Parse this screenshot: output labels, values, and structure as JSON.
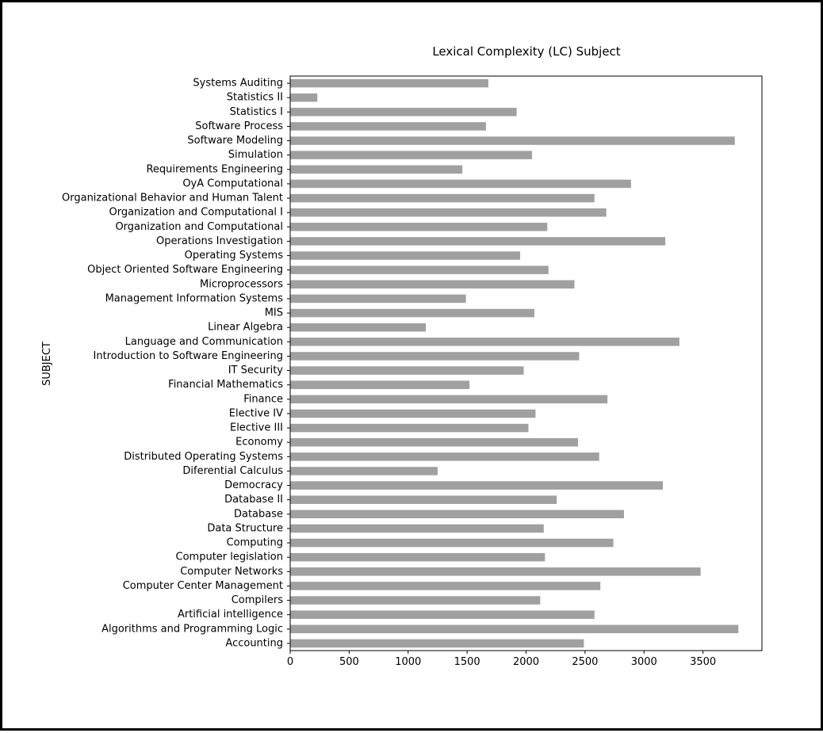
{
  "chart_data": {
    "type": "bar",
    "orientation": "horizontal",
    "title": "Lexical Complexity (LC) Subject",
    "xlabel": "",
    "ylabel": "SUBJECT",
    "xlim": [
      0,
      4000
    ],
    "xticks": [
      0,
      500,
      1000,
      1500,
      2000,
      2500,
      3000,
      3500
    ],
    "grid": false,
    "legend": "none",
    "bar_color": "#a0a0a0",
    "categories": [
      "Accounting",
      "Algorithms and Programming Logic",
      "Artificial intelligence",
      "Compilers",
      "Computer Center Management",
      "Computer Networks",
      "Computer legislation",
      "Computing",
      "Data Structure",
      "Database",
      "Database II",
      "Democracy",
      "Diferential Calculus",
      "Distributed Operating Systems",
      "Economy",
      "Elective III",
      "Elective IV",
      "Finance",
      "Financial Mathematics",
      "IT Security",
      "Introduction to Software Engineering",
      "Language and Communication",
      "Linear Algebra",
      "MIS",
      "Management Information Systems",
      "Microprocessors",
      "Object Oriented Software Engineering",
      "Operating Systems",
      "Operations Investigation",
      "Organization and Computational",
      "Organization and Computational I",
      "Organizational Behavior and Human Talent",
      "OyA Computational",
      "Requirements Engineering",
      "Simulation",
      "Software Modeling",
      "Software Process",
      "Statistics I",
      "Statistics II",
      "Systems Auditing"
    ],
    "values": [
      2490,
      3800,
      2580,
      2120,
      2630,
      3480,
      2160,
      2740,
      2150,
      2830,
      2260,
      3160,
      1250,
      2620,
      2440,
      2020,
      2080,
      2690,
      1520,
      1980,
      2450,
      3300,
      1150,
      2070,
      1490,
      2410,
      2190,
      1950,
      3180,
      2180,
      2680,
      2580,
      2890,
      1460,
      2050,
      3770,
      1660,
      1920,
      230,
      1680
    ]
  }
}
